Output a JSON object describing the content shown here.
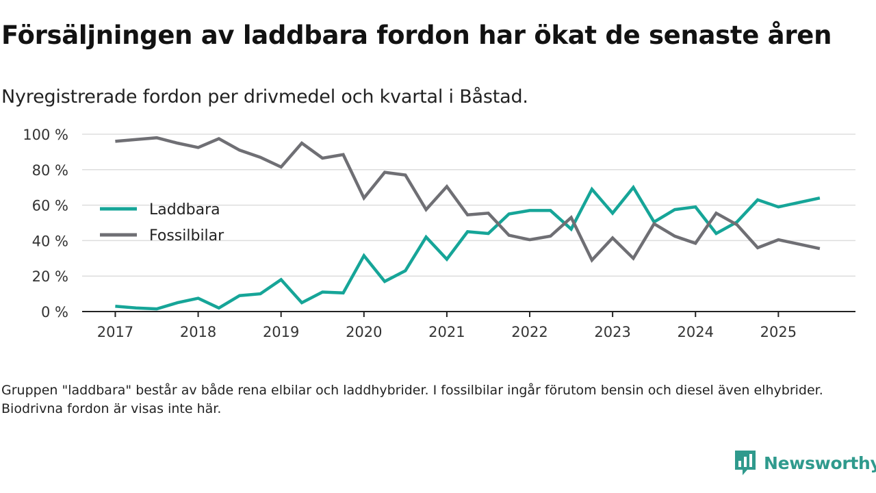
{
  "title": "Försäljningen av laddbara fordon har ökat de senaste åren",
  "subtitle": "Nyregistrerade fordon per drivmedel och kvartal i Båstad.",
  "footnote": "Gruppen \"laddbara\" består av både rena elbilar och laddhybrider. I fossilbilar ingår förutom bensin och diesel även elhybrider. Biodrivna fordon är visas inte här.",
  "brand": {
    "name": "Newsworthy",
    "icon": "newsworthy-logo-icon",
    "color": "#2f9a8d"
  },
  "chart_data": {
    "type": "line",
    "title": "Försäljningen av laddbara fordon har ökat de senaste åren",
    "xlabel": "",
    "ylabel": "",
    "x": [
      2017.0,
      2017.25,
      2017.5,
      2017.75,
      2018.0,
      2018.25,
      2018.5,
      2018.75,
      2019.0,
      2019.25,
      2019.5,
      2019.75,
      2020.0,
      2020.25,
      2020.5,
      2020.75,
      2021.0,
      2021.25,
      2021.5,
      2021.75,
      2022.0,
      2022.25,
      2022.5,
      2022.75,
      2023.0,
      2023.25,
      2023.5,
      2023.75,
      2024.0,
      2024.25,
      2024.5,
      2024.75,
      2025.0,
      2025.25,
      2025.5
    ],
    "xticks": [
      2017,
      2018,
      2019,
      2020,
      2021,
      2022,
      2023,
      2024,
      2025
    ],
    "xtick_labels": [
      "2017",
      "2018",
      "2019",
      "2020",
      "2021",
      "2022",
      "2023",
      "2024",
      "2025"
    ],
    "xlim": [
      2016.6,
      2025.93
    ],
    "ylim": [
      0,
      100
    ],
    "yticks": [
      0,
      20,
      40,
      60,
      80,
      100
    ],
    "ytick_labels": [
      "0 %",
      "20 %",
      "40 %",
      "60 %",
      "80 %",
      "100 %"
    ],
    "grid": true,
    "legend": "left",
    "series": [
      {
        "name": "Laddbara",
        "color": "#16a598",
        "values": [
          3,
          2,
          1.5,
          5,
          7.5,
          2,
          9,
          10,
          18,
          5,
          11,
          10.5,
          31.5,
          17,
          23,
          42,
          29.5,
          45,
          44,
          55,
          57,
          57,
          46.5,
          69,
          55.5,
          70,
          50.5,
          57.5,
          59,
          44,
          50.5,
          63,
          59,
          61.5,
          64
        ]
      },
      {
        "name": "Fossilbilar",
        "color": "#6f6f74",
        "values": [
          96,
          97,
          98,
          95,
          92.5,
          97.5,
          91,
          87,
          81.5,
          95,
          86.5,
          88.5,
          64,
          78.5,
          77,
          57.5,
          70.5,
          54.5,
          55.5,
          43,
          40.5,
          42.5,
          53,
          29,
          41.5,
          30,
          49.5,
          42.5,
          38.5,
          55.5,
          49,
          36,
          40.5,
          38,
          35.5
        ]
      }
    ]
  }
}
